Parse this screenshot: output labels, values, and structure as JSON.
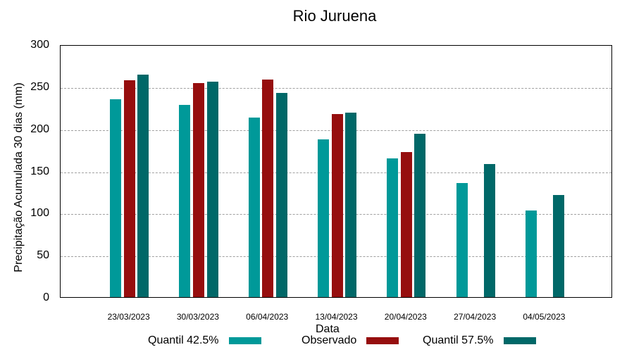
{
  "chart_data": {
    "type": "bar",
    "title": "Rio Juruena",
    "xlabel": "Data",
    "ylabel": "Precipitação Acumulada 30 dias (mm)",
    "ylim": [
      0,
      300
    ],
    "yticks": [
      0,
      50,
      100,
      150,
      200,
      250,
      300
    ],
    "grid": true,
    "legend_position": "bottom",
    "categories": [
      "23/03/2023",
      "30/03/2023",
      "06/04/2023",
      "13/04/2023",
      "20/04/2023",
      "27/04/2023",
      "04/05/2023"
    ],
    "series": [
      {
        "name": "Quantil 42.5%",
        "color": "#009999",
        "values": [
          235,
          228,
          213,
          187,
          165,
          135,
          103
        ]
      },
      {
        "name": "Observado",
        "color": "#960e0e",
        "values": [
          257,
          254,
          258,
          217,
          172,
          null,
          null
        ]
      },
      {
        "name": "Quantil 57.5%",
        "color": "#006868",
        "values": [
          264,
          256,
          242,
          219,
          194,
          158,
          121
        ]
      }
    ]
  }
}
